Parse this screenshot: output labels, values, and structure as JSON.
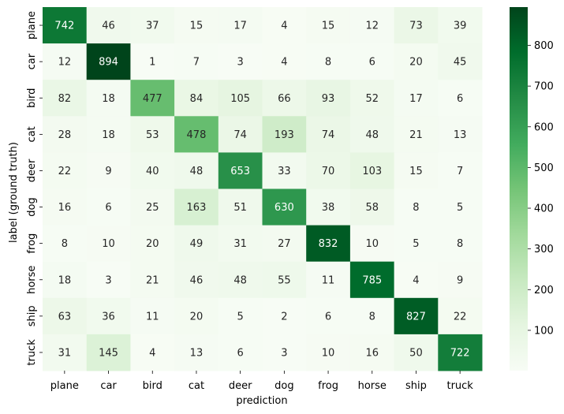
{
  "chart_data": {
    "type": "heatmap",
    "title": "",
    "xlabel": "prediction",
    "ylabel": "label (ground truth)",
    "x_categories": [
      "plane",
      "car",
      "bird",
      "cat",
      "deer",
      "dog",
      "frog",
      "horse",
      "ship",
      "truck"
    ],
    "y_categories": [
      "plane",
      "car",
      "bird",
      "cat",
      "deer",
      "dog",
      "frog",
      "horse",
      "ship",
      "truck"
    ],
    "values": [
      [
        742,
        46,
        37,
        15,
        17,
        4,
        15,
        12,
        73,
        39
      ],
      [
        12,
        894,
        1,
        7,
        3,
        4,
        8,
        6,
        20,
        45
      ],
      [
        82,
        18,
        477,
        84,
        105,
        66,
        93,
        52,
        17,
        6
      ],
      [
        28,
        18,
        53,
        478,
        74,
        193,
        74,
        48,
        21,
        13
      ],
      [
        22,
        9,
        40,
        48,
        653,
        33,
        70,
        103,
        15,
        7
      ],
      [
        16,
        6,
        25,
        163,
        51,
        630,
        38,
        58,
        8,
        5
      ],
      [
        8,
        10,
        20,
        49,
        31,
        27,
        832,
        10,
        5,
        8
      ],
      [
        18,
        3,
        21,
        46,
        48,
        55,
        11,
        785,
        4,
        9
      ],
      [
        63,
        36,
        11,
        20,
        5,
        2,
        6,
        8,
        827,
        22
      ],
      [
        31,
        145,
        4,
        13,
        6,
        3,
        10,
        16,
        50,
        722
      ]
    ],
    "colormap": "Greens",
    "color_range": [
      1,
      894
    ],
    "colorbar_ticks": [
      100,
      200,
      300,
      400,
      500,
      600,
      700,
      800
    ],
    "grid": false
  }
}
